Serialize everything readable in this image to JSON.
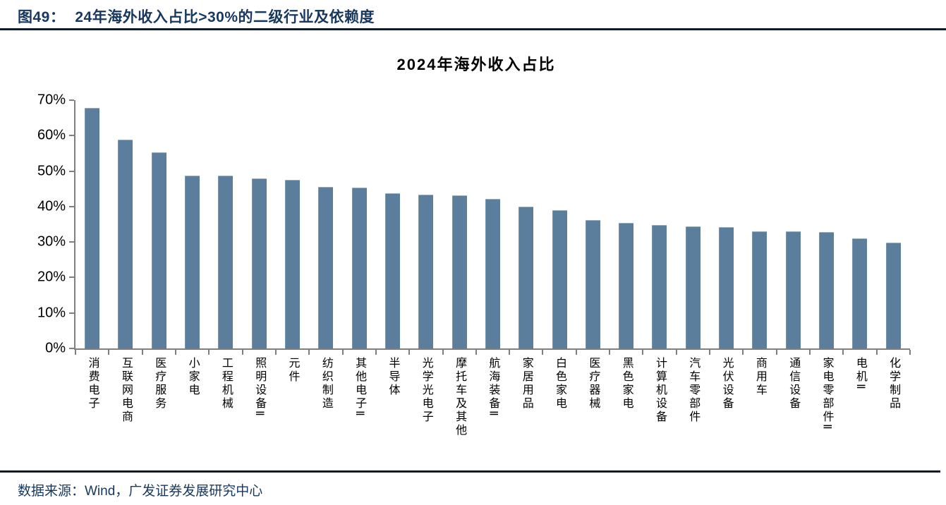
{
  "header": {
    "figure_label": "图49：",
    "figure_title": "24年海外收入占比>30%的二级行业及依赖度"
  },
  "footer": {
    "source_note": "数据来源：Wind，广发证券发展研究中心"
  },
  "colors": {
    "accent_navy": "#17375E",
    "rule_dark": "#101B2D",
    "axis_gray": "#7F7F7F",
    "bar_fill": "#5C7E9D"
  },
  "chart_data": {
    "type": "bar",
    "title": "2024年海外收入占比",
    "categories": [
      "消费电子",
      "互联网电商",
      "医疗服务",
      "小家电",
      "工程机械",
      "照明设备Ⅱ",
      "元件",
      "纺织制造",
      "其他电子Ⅱ",
      "半导体",
      "光学光电子",
      "摩托车及其他",
      "航海装备Ⅱ",
      "家居用品",
      "白色家电",
      "医疗器械",
      "黑色家电",
      "计算机设备",
      "汽车零部件",
      "光伏设备",
      "商用车",
      "通信设备",
      "家电零部件Ⅱ",
      "电机Ⅱ",
      "化学制品"
    ],
    "values": [
      67.9,
      58.8,
      55.3,
      48.8,
      48.7,
      48.0,
      47.6,
      45.5,
      45.3,
      43.7,
      43.4,
      43.2,
      42.1,
      40.0,
      39.0,
      36.1,
      35.5,
      34.9,
      34.4,
      34.3,
      33.1,
      33.0,
      32.9,
      31.0,
      29.9
    ],
    "unit": "%",
    "xlabel": "",
    "ylabel": "",
    "ylim": [
      0,
      70
    ],
    "ytick_step": 10,
    "ytick_suffix": "%",
    "grid": false,
    "legend": "none",
    "bar_orientation": "vertical",
    "category_label_orientation": "vertical"
  }
}
